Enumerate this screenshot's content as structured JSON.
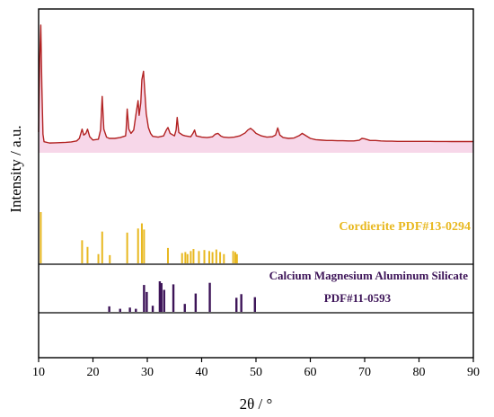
{
  "chart_data": {
    "type": "line",
    "xlabel": "2θ / °",
    "ylabel": "Intensity / a.u.",
    "xlim": [
      10,
      90
    ],
    "xticks": [
      10,
      20,
      30,
      40,
      50,
      60,
      70,
      80,
      90
    ],
    "colors": {
      "pattern": "#b22222",
      "pattern_fill": "#f3c6e0",
      "cordierite": "#e8b820",
      "silicate": "#3d1458"
    },
    "series": [
      {
        "type": "line",
        "x": [
          10.0,
          10.2,
          10.4,
          10.6,
          10.8,
          11.0,
          12,
          13,
          14,
          15,
          16,
          17,
          17.5,
          18.0,
          18.3,
          18.7,
          19.0,
          19.4,
          20,
          21,
          21.4,
          21.7,
          22.0,
          22.5,
          23,
          24,
          25,
          26,
          26.1,
          26.3,
          26.6,
          27,
          27.5,
          28.0,
          28.3,
          28.5,
          28.8,
          29.0,
          29.3,
          29.5,
          29.8,
          30.2,
          30.6,
          31,
          32,
          33,
          33.5,
          33.8,
          34.2,
          35,
          35.3,
          35.5,
          35.8,
          36.5,
          37,
          38,
          38.4,
          38.7,
          39,
          40,
          41,
          42,
          42.5,
          43,
          43.5,
          44,
          45,
          46,
          47,
          48,
          48.5,
          49.0,
          49.5,
          50,
          51,
          52,
          53,
          53.6,
          54.0,
          54.4,
          55,
          56,
          57,
          58,
          58.5,
          59,
          60,
          61,
          62,
          63,
          64,
          65,
          66,
          67,
          68,
          69,
          69.5,
          70,
          71,
          72,
          73,
          74,
          75,
          76,
          77,
          78,
          79,
          80,
          81,
          82,
          83,
          84,
          85,
          86,
          87,
          88,
          89,
          90
        ],
        "values": [
          450,
          2200,
          3000,
          1500,
          400,
          220,
          190,
          195,
          200,
          205,
          215,
          240,
          300,
          520,
          380,
          420,
          520,
          340,
          260,
          280,
          500,
          1300,
          520,
          330,
          300,
          300,
          320,
          360,
          500,
          1000,
          520,
          420,
          500,
          950,
          1200,
          850,
          1150,
          1700,
          1900,
          1500,
          900,
          560,
          420,
          350,
          330,
          360,
          500,
          560,
          420,
          360,
          500,
          800,
          440,
          380,
          360,
          340,
          420,
          500,
          360,
          330,
          320,
          340,
          400,
          420,
          360,
          330,
          320,
          330,
          360,
          430,
          500,
          540,
          490,
          420,
          360,
          330,
          340,
          380,
          550,
          380,
          320,
          300,
          310,
          370,
          420,
          380,
          300,
          270,
          260,
          250,
          250,
          245,
          245,
          240,
          240,
          255,
          300,
          290,
          250,
          250,
          240,
          235,
          235,
          230,
          230,
          230,
          230,
          228,
          228,
          228,
          226,
          226,
          226,
          225,
          225,
          225,
          225,
          225
        ]
      },
      {
        "type": "reference_sticks",
        "name": "Cordierite PDF#13-0294",
        "x": [
          10.4,
          18.0,
          19.0,
          21.0,
          21.7,
          23.1,
          26.3,
          28.3,
          29.0,
          29.4,
          33.8,
          36.4,
          37.0,
          37.4,
          38.0,
          38.5,
          39.5,
          40.5,
          41.4,
          42.0,
          42.7,
          43.4,
          44.1,
          45.8,
          46.2,
          46.5
        ],
        "values": [
          100,
          45,
          32,
          18,
          62,
          16,
          60,
          68,
          78,
          66,
          30,
          20,
          22,
          18,
          24,
          28,
          24,
          26,
          24,
          22,
          27,
          22,
          18,
          24,
          22,
          18
        ]
      },
      {
        "type": "reference_sticks",
        "name": "Calcium Magnesium Aluminum Silicate PDF#11-0593",
        "x": [
          23.0,
          25.0,
          26.8,
          27.9,
          29.4,
          29.9,
          31.0,
          32.3,
          32.6,
          33.1,
          34.8,
          36.9,
          38.9,
          41.5,
          46.4,
          47.3,
          49.8
        ],
        "values": [
          18,
          10,
          14,
          10,
          88,
          65,
          20,
          100,
          94,
          72,
          90,
          26,
          60,
          95,
          46,
          58,
          48
        ]
      }
    ]
  }
}
